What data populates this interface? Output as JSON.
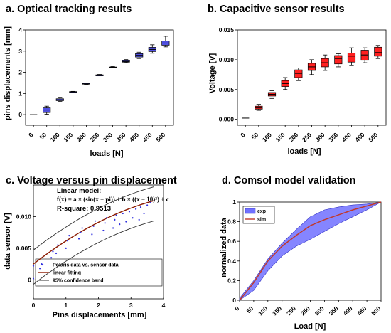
{
  "chart_data": [
    {
      "type": "box",
      "title": "a. Optical tracking results",
      "xlabel": "loads [N]",
      "ylabel": "pins displacements [mm]",
      "categories": [
        "0",
        "50",
        "100",
        "150",
        "200",
        "250",
        "300",
        "350",
        "400",
        "450",
        "500"
      ],
      "ylim": [
        -0.5,
        4
      ],
      "yticks": [
        0,
        1,
        2,
        3,
        4
      ],
      "fill": "#5050e0",
      "boxes": [
        {
          "min": 0,
          "q1": 0,
          "median": 0,
          "q3": 0,
          "max": 0
        },
        {
          "min": 0.02,
          "q1": 0.1,
          "median": 0.22,
          "q3": 0.32,
          "max": 0.4
        },
        {
          "min": 0.62,
          "q1": 0.66,
          "median": 0.7,
          "q3": 0.75,
          "max": 0.8
        },
        {
          "min": 1.03,
          "q1": 1.05,
          "median": 1.07,
          "q3": 1.09,
          "max": 1.1
        },
        {
          "min": 1.43,
          "q1": 1.45,
          "median": 1.47,
          "q3": 1.49,
          "max": 1.5
        },
        {
          "min": 1.83,
          "q1": 1.85,
          "median": 1.86,
          "q3": 1.88,
          "max": 1.9
        },
        {
          "min": 2.2,
          "q1": 2.22,
          "median": 2.23,
          "q3": 2.25,
          "max": 2.27
        },
        {
          "min": 2.45,
          "q1": 2.48,
          "median": 2.51,
          "q3": 2.55,
          "max": 2.6
        },
        {
          "min": 2.65,
          "q1": 2.72,
          "median": 2.8,
          "q3": 2.88,
          "max": 2.95
        },
        {
          "min": 2.9,
          "q1": 2.98,
          "median": 3.08,
          "q3": 3.18,
          "max": 3.3
        },
        {
          "min": 3.2,
          "q1": 3.28,
          "median": 3.38,
          "q3": 3.48,
          "max": 3.7
        }
      ]
    },
    {
      "type": "box",
      "title": "b. Capacitive sensor results",
      "xlabel": "loads [N]",
      "ylabel": "Voltage [V]",
      "categories": [
        "0",
        "50",
        "100",
        "150",
        "200",
        "250",
        "300",
        "350",
        "400",
        "450",
        "500"
      ],
      "ylim": [
        -0.001,
        0.015
      ],
      "yticks": [
        "0.000",
        "0.005",
        "0.010",
        "0.015"
      ],
      "fill": "#ff2020",
      "boxes": [
        {
          "min": 0.0002,
          "q1": 0.0002,
          "median": 0.0002,
          "q3": 0.0002,
          "max": 0.0002
        },
        {
          "min": 0.0015,
          "q1": 0.0017,
          "median": 0.0019,
          "q3": 0.0022,
          "max": 0.0025
        },
        {
          "min": 0.0035,
          "q1": 0.0039,
          "median": 0.0042,
          "q3": 0.0045,
          "max": 0.0048
        },
        {
          "min": 0.005,
          "q1": 0.0055,
          "median": 0.006,
          "q3": 0.0065,
          "max": 0.007
        },
        {
          "min": 0.0065,
          "q1": 0.007,
          "median": 0.0077,
          "q3": 0.0083,
          "max": 0.0086
        },
        {
          "min": 0.0075,
          "q1": 0.0082,
          "median": 0.0088,
          "q3": 0.0094,
          "max": 0.01
        },
        {
          "min": 0.0082,
          "q1": 0.0088,
          "median": 0.0095,
          "q3": 0.0102,
          "max": 0.0108
        },
        {
          "min": 0.0088,
          "q1": 0.0093,
          "median": 0.0102,
          "q3": 0.0107,
          "max": 0.011
        },
        {
          "min": 0.009,
          "q1": 0.0096,
          "median": 0.0106,
          "q3": 0.0111,
          "max": 0.012
        },
        {
          "min": 0.0095,
          "q1": 0.0099,
          "median": 0.0108,
          "q3": 0.0116,
          "max": 0.012
        },
        {
          "min": 0.0102,
          "q1": 0.0106,
          "median": 0.0112,
          "q3": 0.0121,
          "max": 0.0124
        }
      ]
    },
    {
      "type": "scatter",
      "title": "c. Voltage versus pin displacement",
      "xlabel": "Pins displacements [mm]",
      "ylabel": "data sensor [V]",
      "xlim": [
        0,
        4
      ],
      "ylim": [
        -0.003,
        0.015
      ],
      "xticks": [
        0,
        1,
        2,
        3,
        4
      ],
      "yticks": [
        "0",
        "0.005",
        "0.010"
      ],
      "annotation": {
        "model": "Linear model:",
        "formula": "f(x) = a × (sin(x − pi)) + b × ((x − 10)²) + c",
        "rsquare": "R-square: 0.9513"
      },
      "legend": [
        "Polaris data vs. sensor data",
        "linear fitting",
        "95% confidence band"
      ],
      "points_x": [
        0,
        0,
        0.2,
        0.25,
        0.55,
        0.6,
        0.7,
        0.75,
        1.0,
        1.05,
        1.1,
        1.4,
        1.45,
        1.5,
        1.8,
        1.85,
        1.9,
        2.15,
        2.2,
        2.25,
        2.45,
        2.5,
        2.55,
        2.65,
        2.75,
        2.85,
        2.95,
        3.05,
        3.15,
        3.25,
        3.3,
        3.4,
        3.5,
        3.6
      ],
      "points_y": [
        0.0002,
        0.0022,
        0.0018,
        0.0025,
        0.0035,
        0.0045,
        0.0042,
        0.0055,
        0.005,
        0.0062,
        0.007,
        0.0065,
        0.0075,
        0.0082,
        0.0072,
        0.0085,
        0.0093,
        0.0078,
        0.009,
        0.0098,
        0.0082,
        0.0095,
        0.0102,
        0.0088,
        0.0105,
        0.0092,
        0.0108,
        0.0098,
        0.0112,
        0.0095,
        0.0115,
        0.0105,
        0.0118,
        0.0122
      ],
      "colors": {
        "points": "#3030e0",
        "fit": "#8b1a00",
        "band": "#303030"
      }
    },
    {
      "type": "area",
      "title": "d. Comsol model validation",
      "xlabel": "Load [N]",
      "ylabel": "normalized data",
      "x": [
        0,
        50,
        100,
        150,
        200,
        250,
        300,
        350,
        400,
        450,
        500
      ],
      "xlim": [
        0,
        500
      ],
      "ylim": [
        0,
        1
      ],
      "yticks": [
        "0",
        "0.2",
        "0.4",
        "0.6",
        "0.8",
        "1"
      ],
      "legend": [
        "exp",
        "sim"
      ],
      "exp_upper": [
        0.02,
        0.2,
        0.42,
        0.58,
        0.72,
        0.85,
        0.92,
        0.95,
        0.97,
        0.98,
        1.0
      ],
      "exp_lower": [
        0.0,
        0.1,
        0.3,
        0.45,
        0.55,
        0.62,
        0.7,
        0.78,
        0.85,
        0.92,
        1.0
      ],
      "sim": [
        0.0,
        0.18,
        0.4,
        0.55,
        0.66,
        0.76,
        0.82,
        0.87,
        0.92,
        0.96,
        1.0
      ],
      "colors": {
        "band": "#7070ff",
        "sim": "#c0392b"
      }
    }
  ]
}
